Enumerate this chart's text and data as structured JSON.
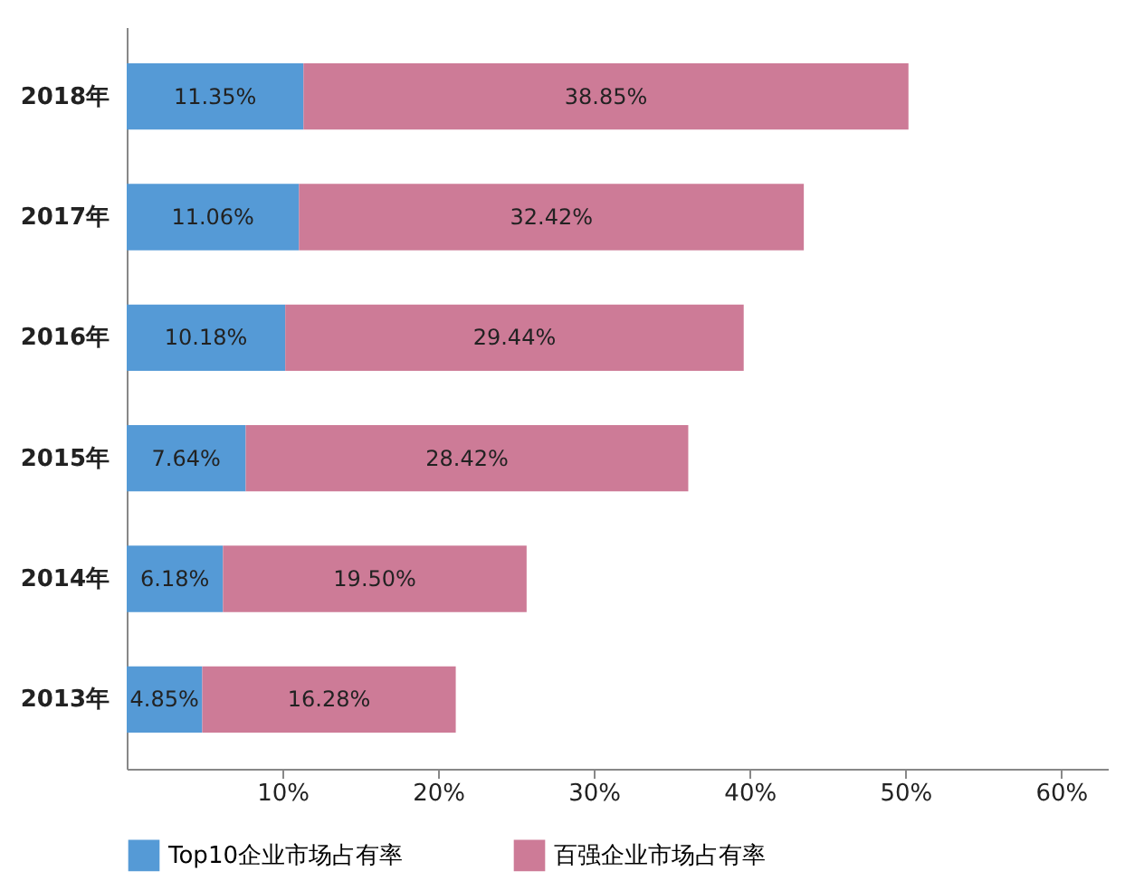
{
  "chart_data": {
    "type": "bar",
    "orientation": "horizontal",
    "stacked": true,
    "categories": [
      "2018年",
      "2017年",
      "2016年",
      "2015年",
      "2014年",
      "2013年"
    ],
    "series": [
      {
        "name": "Top10企业市场占有率",
        "color": "#559ad6",
        "values": [
          11.35,
          11.06,
          10.18,
          7.64,
          6.18,
          4.85
        ],
        "value_labels": [
          "11.35%",
          "11.06%",
          "10.18%",
          "7.64%",
          "6.18%",
          "4.85%"
        ]
      },
      {
        "name": "百强企业市场占有率",
        "color": "#cd7b97",
        "values": [
          38.85,
          32.42,
          29.44,
          28.42,
          19.5,
          16.28
        ],
        "value_labels": [
          "38.85%",
          "32.42%",
          "29.44%",
          "28.42%",
          "19.50%",
          "16.28%"
        ]
      }
    ],
    "xlim": [
      0,
      63
    ],
    "xticks": [
      {
        "value": 10,
        "label": "10%"
      },
      {
        "value": 20,
        "label": "20%"
      },
      {
        "value": 30,
        "label": "30%"
      },
      {
        "value": 40,
        "label": "40%"
      },
      {
        "value": 50,
        "label": "50%"
      },
      {
        "value": 60,
        "label": "60%"
      }
    ],
    "legend": "bottom",
    "grid": false
  }
}
